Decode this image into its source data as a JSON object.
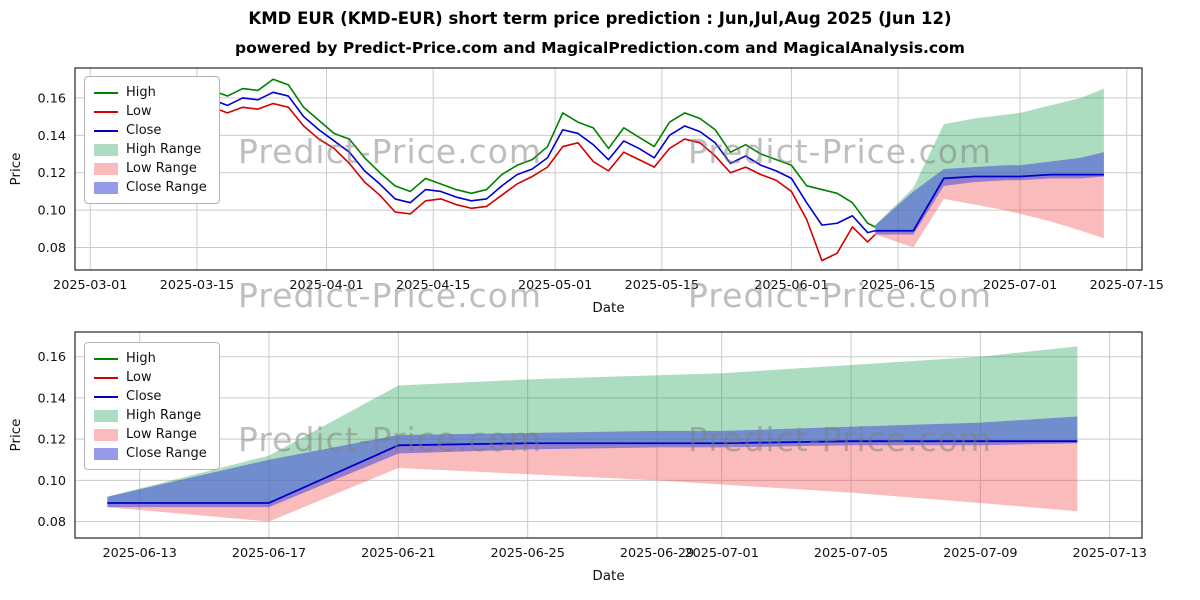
{
  "title": "KMD EUR (KMD-EUR) short term price prediction : Jun,Jul,Aug 2025 (Jun 12)",
  "subtitle": "powered by Predict-Price.com and MagicalPrediction.com and MagicalAnalysis.com",
  "watermark": "Predict-Price.com",
  "colors": {
    "high": "#008000",
    "low": "#d40000",
    "close": "#0000cd",
    "high_range": "rgba(0,150,60,0.32)",
    "low_range": "rgba(235,45,45,0.32)",
    "close_range": "rgba(72,82,215,0.58)",
    "grid": "#cccccc",
    "spine": "#262626"
  },
  "legend": [
    {
      "label": "High",
      "type": "line",
      "color_key": "high"
    },
    {
      "label": "Low",
      "type": "line",
      "color_key": "low"
    },
    {
      "label": "Close",
      "type": "line",
      "color_key": "close"
    },
    {
      "label": "High Range",
      "type": "band",
      "color_key": "high_range"
    },
    {
      "label": "Low Range",
      "type": "band",
      "color_key": "low_range"
    },
    {
      "label": "Close Range",
      "type": "band",
      "color_key": "close_range"
    }
  ],
  "chart_data": [
    {
      "type": "line",
      "name": "price history and prediction",
      "xlabel": "Date",
      "ylabel": "Price",
      "xdomain": [
        "2025-02-27",
        "2025-07-17"
      ],
      "ydomain": [
        0.068,
        0.176
      ],
      "xticks": [
        "2025-03-01",
        "2025-03-15",
        "2025-04-01",
        "2025-04-15",
        "2025-05-01",
        "2025-05-15",
        "2025-06-01",
        "2025-06-15",
        "2025-07-01",
        "2025-07-15"
      ],
      "yticks": [
        0.08,
        0.1,
        0.12,
        0.14,
        0.16
      ],
      "history": {
        "dates": [
          "2025-03-01",
          "2025-03-03",
          "2025-03-05",
          "2025-03-07",
          "2025-03-09",
          "2025-03-11",
          "2025-03-13",
          "2025-03-15",
          "2025-03-17",
          "2025-03-19",
          "2025-03-21",
          "2025-03-23",
          "2025-03-25",
          "2025-03-27",
          "2025-03-29",
          "2025-03-31",
          "2025-04-02",
          "2025-04-04",
          "2025-04-06",
          "2025-04-08",
          "2025-04-10",
          "2025-04-12",
          "2025-04-14",
          "2025-04-16",
          "2025-04-18",
          "2025-04-20",
          "2025-04-22",
          "2025-04-24",
          "2025-04-26",
          "2025-04-28",
          "2025-04-30",
          "2025-05-02",
          "2025-05-04",
          "2025-05-06",
          "2025-05-08",
          "2025-05-10",
          "2025-05-12",
          "2025-05-14",
          "2025-05-16",
          "2025-05-18",
          "2025-05-20",
          "2025-05-22",
          "2025-05-24",
          "2025-05-26",
          "2025-05-28",
          "2025-05-30",
          "2025-06-01",
          "2025-06-03",
          "2025-06-05",
          "2025-06-07",
          "2025-06-09",
          "2025-06-11",
          "2025-06-12"
        ],
        "high": [
          0.157,
          0.15,
          0.154,
          0.147,
          0.145,
          0.157,
          0.155,
          0.16,
          0.164,
          0.161,
          0.165,
          0.164,
          0.17,
          0.167,
          0.155,
          0.148,
          0.141,
          0.138,
          0.128,
          0.12,
          0.113,
          0.11,
          0.117,
          0.114,
          0.111,
          0.109,
          0.111,
          0.119,
          0.124,
          0.127,
          0.134,
          0.152,
          0.147,
          0.144,
          0.133,
          0.144,
          0.139,
          0.134,
          0.147,
          0.152,
          0.149,
          0.143,
          0.131,
          0.135,
          0.13,
          0.127,
          0.124,
          0.113,
          0.111,
          0.109,
          0.104,
          0.093,
          0.091
        ],
        "low": [
          0.149,
          0.143,
          0.146,
          0.138,
          0.124,
          0.147,
          0.146,
          0.152,
          0.155,
          0.152,
          0.155,
          0.154,
          0.157,
          0.155,
          0.145,
          0.138,
          0.133,
          0.125,
          0.115,
          0.108,
          0.099,
          0.098,
          0.105,
          0.106,
          0.103,
          0.101,
          0.102,
          0.108,
          0.114,
          0.118,
          0.123,
          0.134,
          0.136,
          0.126,
          0.121,
          0.131,
          0.127,
          0.123,
          0.133,
          0.138,
          0.136,
          0.129,
          0.12,
          0.123,
          0.119,
          0.116,
          0.11,
          0.095,
          0.073,
          0.077,
          0.091,
          0.083,
          0.087
        ],
        "close": [
          0.153,
          0.146,
          0.15,
          0.142,
          0.134,
          0.152,
          0.15,
          0.156,
          0.159,
          0.156,
          0.16,
          0.159,
          0.163,
          0.161,
          0.15,
          0.143,
          0.137,
          0.131,
          0.121,
          0.114,
          0.106,
          0.104,
          0.111,
          0.11,
          0.107,
          0.105,
          0.106,
          0.113,
          0.119,
          0.122,
          0.128,
          0.143,
          0.141,
          0.135,
          0.127,
          0.137,
          0.133,
          0.128,
          0.14,
          0.145,
          0.142,
          0.136,
          0.125,
          0.129,
          0.124,
          0.121,
          0.117,
          0.104,
          0.092,
          0.093,
          0.097,
          0.088,
          0.089
        ]
      },
      "forecast": {
        "dates": [
          "2025-06-12",
          "2025-06-17",
          "2025-06-21",
          "2025-06-25",
          "2025-06-29",
          "2025-07-01",
          "2025-07-05",
          "2025-07-09",
          "2025-07-12"
        ],
        "close": [
          0.089,
          0.089,
          0.117,
          0.118,
          0.118,
          0.118,
          0.119,
          0.119,
          0.119
        ],
        "high_top": [
          0.092,
          0.112,
          0.146,
          0.149,
          0.151,
          0.152,
          0.156,
          0.16,
          0.165
        ],
        "low_bottom": [
          0.087,
          0.08,
          0.106,
          0.103,
          0.1,
          0.098,
          0.094,
          0.089,
          0.085
        ],
        "close_top": [
          0.092,
          0.11,
          0.122,
          0.123,
          0.124,
          0.124,
          0.126,
          0.128,
          0.131
        ],
        "close_bottom": [
          0.087,
          0.087,
          0.113,
          0.115,
          0.116,
          0.116,
          0.117,
          0.117,
          0.118
        ]
      }
    },
    {
      "type": "line",
      "name": "prediction detail",
      "xlabel": "Date",
      "ylabel": "Price",
      "xdomain": [
        "2025-06-11",
        "2025-07-14"
      ],
      "ydomain": [
        0.072,
        0.172
      ],
      "xticks": [
        "2025-06-13",
        "2025-06-17",
        "2025-06-21",
        "2025-06-25",
        "2025-06-29",
        "2025-07-01",
        "2025-07-05",
        "2025-07-09",
        "2025-07-13"
      ],
      "yticks": [
        0.08,
        0.1,
        0.12,
        0.14,
        0.16
      ],
      "forecast": {
        "dates": [
          "2025-06-12",
          "2025-06-17",
          "2025-06-21",
          "2025-06-25",
          "2025-06-29",
          "2025-07-01",
          "2025-07-05",
          "2025-07-09",
          "2025-07-12"
        ],
        "close": [
          0.089,
          0.089,
          0.117,
          0.118,
          0.118,
          0.118,
          0.119,
          0.119,
          0.119
        ],
        "high_top": [
          0.092,
          0.112,
          0.146,
          0.149,
          0.151,
          0.152,
          0.156,
          0.16,
          0.165
        ],
        "low_bottom": [
          0.087,
          0.08,
          0.106,
          0.103,
          0.1,
          0.098,
          0.094,
          0.089,
          0.085
        ],
        "close_top": [
          0.092,
          0.11,
          0.122,
          0.123,
          0.124,
          0.124,
          0.126,
          0.128,
          0.131
        ],
        "close_bottom": [
          0.087,
          0.087,
          0.113,
          0.115,
          0.116,
          0.116,
          0.117,
          0.117,
          0.118
        ]
      }
    }
  ]
}
